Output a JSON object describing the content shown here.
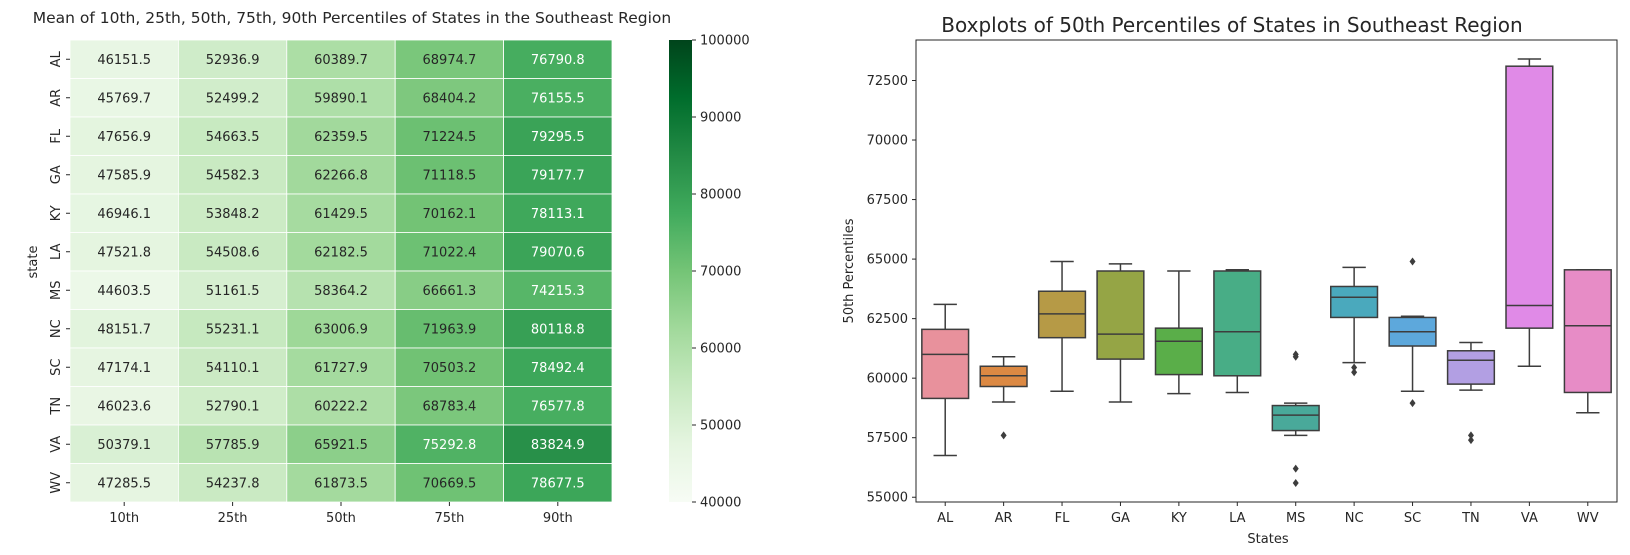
{
  "chart_data": [
    {
      "type": "heatmap",
      "title": "Mean of 10th, 25th, 50th, 75th, 90th Percentiles of States in the Southeast Region",
      "xlabel": "",
      "ylabel": "state",
      "columns": [
        "10th",
        "25th",
        "50th",
        "75th",
        "90th"
      ],
      "rows": [
        "AL",
        "AR",
        "FL",
        "GA",
        "KY",
        "LA",
        "MS",
        "NC",
        "SC",
        "TN",
        "VA",
        "WV"
      ],
      "values": [
        [
          46151.5,
          52936.9,
          60389.7,
          68974.7,
          76790.8
        ],
        [
          45769.7,
          52499.2,
          59890.1,
          68404.2,
          76155.5
        ],
        [
          47656.9,
          54663.5,
          62359.5,
          71224.5,
          79295.5
        ],
        [
          47585.9,
          54582.3,
          62266.8,
          71118.5,
          79177.7
        ],
        [
          46946.1,
          53848.2,
          61429.5,
          70162.1,
          78113.1
        ],
        [
          47521.8,
          54508.6,
          62182.5,
          71022.4,
          79070.6
        ],
        [
          44603.5,
          51161.5,
          58364.2,
          66661.3,
          74215.3
        ],
        [
          48151.7,
          55231.1,
          63006.9,
          71963.9,
          80118.8
        ],
        [
          47174.1,
          54110.1,
          61727.9,
          70503.2,
          78492.4
        ],
        [
          46023.6,
          52790.1,
          60222.2,
          68783.4,
          76577.8
        ],
        [
          50379.1,
          57785.9,
          65921.5,
          75292.8,
          83824.9
        ],
        [
          47285.5,
          54237.8,
          61873.5,
          70669.5,
          78677.5
        ]
      ],
      "value_labels": [
        [
          "46151.5",
          "52936.9",
          "60389.7",
          "68974.7",
          "76790.8"
        ],
        [
          "45769.7",
          "52499.2",
          "59890.1",
          "68404.2",
          "76155.5"
        ],
        [
          "47656.9",
          "54663.5",
          "62359.5",
          "71224.5",
          "79295.5"
        ],
        [
          "47585.9",
          "54582.3",
          "62266.8",
          "71118.5",
          "79177.7"
        ],
        [
          "46946.1",
          "53848.2",
          "61429.5",
          "70162.1",
          "78113.1"
        ],
        [
          "47521.8",
          "54508.6",
          "62182.5",
          "71022.4",
          "79070.6"
        ],
        [
          "44603.5",
          "51161.5",
          "58364.2",
          "66661.3",
          "74215.3"
        ],
        [
          "48151.7",
          "55231.1",
          "63006.9",
          "71963.9",
          "80118.8"
        ],
        [
          "47174.1",
          "54110.1",
          "61727.9",
          "70503.2",
          "78492.4"
        ],
        [
          "46023.6",
          "52790.1",
          "60222.2",
          "68783.4",
          "76577.8"
        ],
        [
          "50379.1",
          "57785.9",
          "65921.5",
          "75292.8",
          "83824.9"
        ],
        [
          "47285.5",
          "54237.8",
          "61873.5",
          "70669.5",
          "78677.5"
        ]
      ],
      "colorbar": {
        "vmin": 40000,
        "vmax": 100000,
        "colormap": "Greens",
        "ticks": [
          40000,
          50000,
          60000,
          70000,
          80000,
          90000,
          100000
        ],
        "tick_labels": [
          "40000",
          "50000",
          "60000",
          "70000",
          "80000",
          "90000",
          "100000"
        ]
      },
      "grid": false
    },
    {
      "type": "boxplot",
      "title": "Boxplots of 50th Percentiles of States in Southeast Region",
      "xlabel": "States",
      "ylabel": "50th Percentiles",
      "categories": [
        "AL",
        "AR",
        "FL",
        "GA",
        "KY",
        "LA",
        "MS",
        "NC",
        "SC",
        "TN",
        "VA",
        "WV"
      ],
      "ylim": [
        54800,
        74200
      ],
      "yticks": [
        55000,
        57500,
        60000,
        62500,
        65000,
        67500,
        70000,
        72500
      ],
      "ytick_labels": [
        "55000",
        "57500",
        "60000",
        "62500",
        "65000",
        "67500",
        "70000",
        "72500"
      ],
      "boxes": [
        {
          "state": "AL",
          "whislo": 56750,
          "q1": 59150,
          "median": 61000,
          "q3": 62050,
          "whishi": 63100,
          "fliers": [],
          "color": "#e8919c"
        },
        {
          "state": "AR",
          "whislo": 59000,
          "q1": 59650,
          "median": 60100,
          "q3": 60500,
          "whishi": 60900,
          "fliers": [
            57600
          ],
          "color": "#dc8943"
        },
        {
          "state": "FL",
          "whislo": 59450,
          "q1": 61700,
          "median": 62700,
          "q3": 63650,
          "whishi": 64900,
          "fliers": [],
          "color": "#b69a46"
        },
        {
          "state": "GA",
          "whislo": 59000,
          "q1": 60800,
          "median": 61850,
          "q3": 64500,
          "whishi": 64800,
          "fliers": [],
          "color": "#95a545"
        },
        {
          "state": "KY",
          "whislo": 59350,
          "q1": 60150,
          "median": 61550,
          "q3": 62100,
          "whishi": 64500,
          "fliers": [],
          "color": "#5aae49"
        },
        {
          "state": "LA",
          "whislo": 59400,
          "q1": 60100,
          "median": 61950,
          "q3": 64500,
          "whishi": 64550,
          "fliers": [],
          "color": "#48ad86"
        },
        {
          "state": "MS",
          "whislo": 57600,
          "q1": 57800,
          "median": 58450,
          "q3": 58850,
          "whishi": 58950,
          "fliers": [
            55600,
            56200,
            60900,
            61000
          ],
          "color": "#49a99a"
        },
        {
          "state": "NC",
          "whislo": 60650,
          "q1": 62550,
          "median": 63400,
          "q3": 63850,
          "whishi": 64650,
          "fliers": [
            60250,
            60450
          ],
          "color": "#4aa9bd"
        },
        {
          "state": "SC",
          "whislo": 59450,
          "q1": 61350,
          "median": 61950,
          "q3": 62550,
          "whishi": 62600,
          "fliers": [
            58950,
            64900
          ],
          "color": "#5da8dc"
        },
        {
          "state": "TN",
          "whislo": 59500,
          "q1": 59750,
          "median": 60750,
          "q3": 61150,
          "whishi": 61500,
          "fliers": [
            57400,
            57600
          ],
          "color": "#b29fe3"
        },
        {
          "state": "VA",
          "whislo": 60500,
          "q1": 62100,
          "median": 63050,
          "q3": 73100,
          "whishi": 73400,
          "fliers": [],
          "color": "#e08ae7"
        },
        {
          "state": "WV",
          "whislo": 58550,
          "q1": 59400,
          "median": 62200,
          "q3": 64550,
          "whishi": 64550,
          "fliers": [],
          "color": "#e78cc6"
        }
      ],
      "grid": false
    }
  ]
}
